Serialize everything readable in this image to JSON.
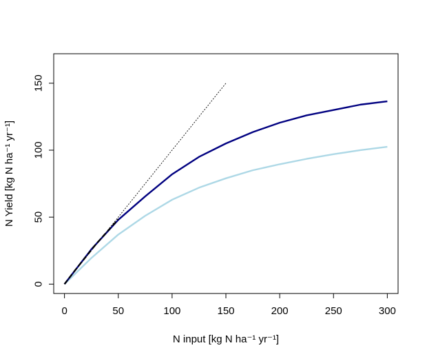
{
  "chart_data": {
    "type": "line",
    "title": "",
    "xlabel": "N input [kg N ha⁻¹ yr⁻¹]",
    "ylabel": "N Yield [kg N ha⁻¹ yr⁻¹]",
    "xlim": [
      -10,
      310
    ],
    "ylim": [
      -7,
      172
    ],
    "x_ticks": [
      0,
      50,
      100,
      150,
      200,
      250,
      300
    ],
    "y_ticks": [
      0,
      50,
      100,
      150
    ],
    "grid": false,
    "legend": "none",
    "series": [
      {
        "style": "dotted",
        "color": "#000000",
        "x": [
          0,
          150
        ],
        "y": [
          0,
          150
        ]
      },
      {
        "style": "dashed",
        "color": "#000000",
        "x": [
          0,
          10,
          20,
          30,
          40,
          50
        ],
        "y": [
          0,
          10.5,
          20.5,
          30.5,
          39.5,
          48.5
        ]
      },
      {
        "style": "solid",
        "color": "#000080",
        "x": [
          0,
          25,
          50,
          75,
          100,
          125,
          150,
          175,
          200,
          225,
          250,
          275,
          300
        ],
        "y": [
          0,
          26,
          48,
          65.5,
          82,
          95,
          105,
          113.5,
          120.5,
          126,
          130,
          134,
          136.5
        ]
      },
      {
        "style": "solid",
        "color": "#ADD8E6",
        "x": [
          0,
          25,
          50,
          75,
          100,
          125,
          150,
          175,
          200,
          225,
          250,
          275,
          300
        ],
        "y": [
          0,
          19.5,
          37,
          51,
          63,
          72,
          79,
          85,
          89.5,
          93.5,
          97,
          100,
          102.5
        ]
      }
    ]
  }
}
